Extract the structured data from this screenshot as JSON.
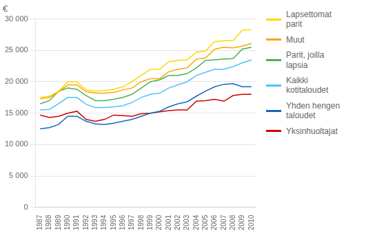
{
  "chart_data": {
    "type": "line",
    "ylabel": "€",
    "x": [
      1987,
      1988,
      1989,
      1990,
      1991,
      1992,
      1993,
      1994,
      1995,
      1996,
      1997,
      1998,
      1999,
      2000,
      2001,
      2002,
      2003,
      2004,
      2005,
      2006,
      2007,
      2008,
      2009,
      2010
    ],
    "xlim": [
      1986.5,
      2010.5
    ],
    "xticks": [
      1987,
      1988,
      1989,
      1990,
      1991,
      1992,
      1993,
      1994,
      1995,
      1996,
      1997,
      1998,
      1999,
      2000,
      2001,
      2002,
      2003,
      2004,
      2005,
      2006,
      2007,
      2008,
      2009,
      2010
    ],
    "series": [
      {
        "name": "Lapsettomat\nparit",
        "color": "#FFD700",
        "values": [
          17500,
          17700,
          18500,
          20000,
          20000,
          18700,
          18500,
          18600,
          18800,
          19200,
          20000,
          21000,
          22000,
          22000,
          23200,
          23400,
          23500,
          24700,
          24900,
          26400,
          26500,
          26600,
          28200,
          28300
        ]
      },
      {
        "name": "Muut",
        "color": "#FFA500",
        "values": [
          17300,
          17500,
          18400,
          19500,
          19500,
          18400,
          18200,
          18200,
          18300,
          18700,
          19000,
          20000,
          20500,
          20500,
          21600,
          22000,
          22200,
          23600,
          23800,
          25200,
          25500,
          25400,
          25700,
          26100
        ]
      },
      {
        "name": "Parit, joilla\nlapsia",
        "color": "#4CAF50",
        "values": [
          16500,
          17000,
          18500,
          19000,
          18800,
          17800,
          17000,
          17000,
          17200,
          17500,
          18000,
          19000,
          20000,
          20300,
          21000,
          21000,
          21300,
          22200,
          23400,
          23500,
          23600,
          23700,
          25200,
          25500
        ]
      },
      {
        "name": "Kaikki\nkotitaloudet",
        "color": "#4FC3F7",
        "values": [
          15500,
          15600,
          16500,
          17500,
          17500,
          16400,
          15900,
          15900,
          16000,
          16200,
          16700,
          17500,
          18000,
          18200,
          19000,
          19500,
          20000,
          21000,
          21500,
          22000,
          22000,
          22400,
          23000,
          23500
        ]
      },
      {
        "name": "Yhden hengen\ntaloudet",
        "color": "#1565C0",
        "values": [
          12500,
          12700,
          13200,
          14500,
          14500,
          13700,
          13300,
          13200,
          13400,
          13700,
          14000,
          14500,
          15000,
          15300,
          16000,
          16500,
          16800,
          17700,
          18500,
          19200,
          19600,
          19700,
          19200,
          19200
        ]
      },
      {
        "name": "Yksinhuoltajat",
        "color": "#CC0000",
        "values": [
          14700,
          14300,
          14500,
          15000,
          15300,
          14000,
          13700,
          14000,
          14700,
          14600,
          14500,
          14900,
          15000,
          15200,
          15400,
          15500,
          15500,
          16900,
          17000,
          17200,
          16900,
          17800,
          18000,
          18000
        ]
      }
    ],
    "ylim": [
      0,
      30000
    ],
    "yticks": [
      0,
      {
        "value": 5000,
        "label": "5 000"
      },
      {
        "value": 10000,
        "label": "10 000"
      },
      {
        "value": 15000,
        "label": "15 000"
      },
      {
        "value": 20000,
        "label": "20 000"
      },
      {
        "value": 25000,
        "label": "25 000"
      },
      {
        "value": 30000,
        "label": "30 000"
      }
    ],
    "grid": true,
    "legend": "right"
  }
}
